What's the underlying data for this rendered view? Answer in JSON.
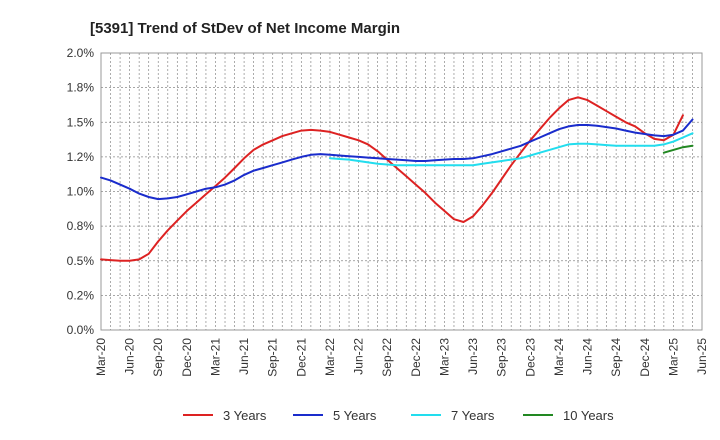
{
  "chart_data": {
    "type": "line",
    "title": "[5391]  Trend of StDev of Net Income Margin",
    "xlabel": "",
    "ylabel": "",
    "x_ticks": [
      "Mar-20",
      "Jun-20",
      "Sep-20",
      "Dec-20",
      "Mar-21",
      "Jun-21",
      "Sep-21",
      "Dec-21",
      "Mar-22",
      "Jun-22",
      "Sep-22",
      "Dec-22",
      "Mar-23",
      "Jun-23",
      "Sep-23",
      "Dec-23",
      "Mar-24",
      "Jun-24",
      "Sep-24",
      "Dec-24",
      "Mar-25",
      "Jun-25"
    ],
    "y_ticks": [
      "0.0%",
      "0.2%",
      "0.5%",
      "0.8%",
      "1.0%",
      "1.2%",
      "1.5%",
      "1.8%",
      "2.0%"
    ],
    "ylim": [
      0,
      2.0
    ],
    "grid": true,
    "legend_position": "bottom",
    "series": [
      {
        "name": "3 Years",
        "color": "#dd2222",
        "points": [
          [
            "Mar-20",
            0.51
          ],
          [
            "Apr-20",
            0.505
          ],
          [
            "May-20",
            0.5
          ],
          [
            "Jun-20",
            0.5
          ],
          [
            "Jul-20",
            0.51
          ],
          [
            "Aug-20",
            0.55
          ],
          [
            "Sep-20",
            0.64
          ],
          [
            "Oct-20",
            0.72
          ],
          [
            "Nov-20",
            0.79
          ],
          [
            "Dec-20",
            0.86
          ],
          [
            "Jan-21",
            0.92
          ],
          [
            "Feb-21",
            0.98
          ],
          [
            "Mar-21",
            1.04
          ],
          [
            "Apr-21",
            1.1
          ],
          [
            "May-21",
            1.17
          ],
          [
            "Jun-21",
            1.24
          ],
          [
            "Jul-21",
            1.3
          ],
          [
            "Aug-21",
            1.34
          ],
          [
            "Sep-21",
            1.37
          ],
          [
            "Oct-21",
            1.4
          ],
          [
            "Nov-21",
            1.42
          ],
          [
            "Dec-21",
            1.44
          ],
          [
            "Jan-22",
            1.445
          ],
          [
            "Feb-22",
            1.44
          ],
          [
            "Mar-22",
            1.43
          ],
          [
            "Apr-22",
            1.41
          ],
          [
            "May-22",
            1.39
          ],
          [
            "Jun-22",
            1.37
          ],
          [
            "Jul-22",
            1.34
          ],
          [
            "Aug-22",
            1.29
          ],
          [
            "Sep-22",
            1.23
          ],
          [
            "Oct-22",
            1.17
          ],
          [
            "Nov-22",
            1.11
          ],
          [
            "Dec-22",
            1.05
          ],
          [
            "Jan-23",
            0.99
          ],
          [
            "Feb-23",
            0.92
          ],
          [
            "Mar-23",
            0.86
          ],
          [
            "Apr-23",
            0.8
          ],
          [
            "May-23",
            0.78
          ],
          [
            "Jun-23",
            0.82
          ],
          [
            "Jul-23",
            0.9
          ],
          [
            "Aug-23",
            0.99
          ],
          [
            "Sep-23",
            1.09
          ],
          [
            "Oct-23",
            1.19
          ],
          [
            "Nov-23",
            1.28
          ],
          [
            "Dec-23",
            1.37
          ],
          [
            "Jan-24",
            1.45
          ],
          [
            "Feb-24",
            1.53
          ],
          [
            "Mar-24",
            1.6
          ],
          [
            "Apr-24",
            1.66
          ],
          [
            "May-24",
            1.68
          ],
          [
            "Jun-24",
            1.66
          ],
          [
            "Jul-24",
            1.62
          ],
          [
            "Aug-24",
            1.58
          ],
          [
            "Sep-24",
            1.54
          ],
          [
            "Oct-24",
            1.5
          ],
          [
            "Nov-24",
            1.47
          ],
          [
            "Dec-24",
            1.42
          ],
          [
            "Jan-25",
            1.38
          ],
          [
            "Feb-25",
            1.37
          ],
          [
            "Mar-25",
            1.41
          ],
          [
            "Apr-25",
            1.55
          ]
        ]
      },
      {
        "name": "5 Years",
        "color": "#1a2ccc",
        "points": [
          [
            "Mar-20",
            1.1
          ],
          [
            "Apr-20",
            1.08
          ],
          [
            "May-20",
            1.05
          ],
          [
            "Jun-20",
            1.02
          ],
          [
            "Jul-20",
            0.985
          ],
          [
            "Aug-20",
            0.96
          ],
          [
            "Sep-20",
            0.945
          ],
          [
            "Oct-20",
            0.95
          ],
          [
            "Nov-20",
            0.96
          ],
          [
            "Dec-20",
            0.98
          ],
          [
            "Jan-21",
            1.0
          ],
          [
            "Feb-21",
            1.02
          ],
          [
            "Mar-21",
            1.03
          ],
          [
            "Apr-21",
            1.05
          ],
          [
            "May-21",
            1.08
          ],
          [
            "Jun-21",
            1.12
          ],
          [
            "Jul-21",
            1.15
          ],
          [
            "Aug-21",
            1.17
          ],
          [
            "Sep-21",
            1.19
          ],
          [
            "Oct-21",
            1.21
          ],
          [
            "Nov-21",
            1.23
          ],
          [
            "Dec-21",
            1.25
          ],
          [
            "Jan-22",
            1.265
          ],
          [
            "Feb-22",
            1.27
          ],
          [
            "Mar-22",
            1.265
          ],
          [
            "Apr-22",
            1.26
          ],
          [
            "May-22",
            1.255
          ],
          [
            "Jun-22",
            1.25
          ],
          [
            "Jul-22",
            1.245
          ],
          [
            "Aug-22",
            1.24
          ],
          [
            "Sep-22",
            1.235
          ],
          [
            "Oct-22",
            1.23
          ],
          [
            "Nov-22",
            1.225
          ],
          [
            "Dec-22",
            1.22
          ],
          [
            "Jan-23",
            1.22
          ],
          [
            "Feb-23",
            1.225
          ],
          [
            "Mar-23",
            1.23
          ],
          [
            "Apr-23",
            1.235
          ],
          [
            "May-23",
            1.235
          ],
          [
            "Jun-23",
            1.24
          ],
          [
            "Jul-23",
            1.255
          ],
          [
            "Aug-23",
            1.27
          ],
          [
            "Sep-23",
            1.29
          ],
          [
            "Oct-23",
            1.31
          ],
          [
            "Nov-23",
            1.33
          ],
          [
            "Dec-23",
            1.36
          ],
          [
            "Jan-24",
            1.39
          ],
          [
            "Feb-24",
            1.42
          ],
          [
            "Mar-24",
            1.45
          ],
          [
            "Apr-24",
            1.47
          ],
          [
            "May-24",
            1.48
          ],
          [
            "Jun-24",
            1.48
          ],
          [
            "Jul-24",
            1.475
          ],
          [
            "Aug-24",
            1.465
          ],
          [
            "Sep-24",
            1.455
          ],
          [
            "Oct-24",
            1.44
          ],
          [
            "Nov-24",
            1.425
          ],
          [
            "Dec-24",
            1.415
          ],
          [
            "Jan-25",
            1.405
          ],
          [
            "Feb-25",
            1.4
          ],
          [
            "Mar-25",
            1.41
          ],
          [
            "Apr-25",
            1.44
          ],
          [
            "May-25",
            1.52
          ]
        ]
      },
      {
        "name": "7 Years",
        "color": "#22ddee",
        "points": [
          [
            "Mar-22",
            1.24
          ],
          [
            "Apr-22",
            1.235
          ],
          [
            "May-22",
            1.23
          ],
          [
            "Jun-22",
            1.22
          ],
          [
            "Jul-22",
            1.21
          ],
          [
            "Aug-22",
            1.2
          ],
          [
            "Sep-22",
            1.195
          ],
          [
            "Oct-22",
            1.19
          ],
          [
            "Nov-22",
            1.19
          ],
          [
            "Dec-22",
            1.19
          ],
          [
            "Jan-23",
            1.19
          ],
          [
            "Feb-23",
            1.19
          ],
          [
            "Mar-23",
            1.19
          ],
          [
            "Apr-23",
            1.19
          ],
          [
            "May-23",
            1.19
          ],
          [
            "Jun-23",
            1.19
          ],
          [
            "Jul-23",
            1.2
          ],
          [
            "Aug-23",
            1.21
          ],
          [
            "Sep-23",
            1.22
          ],
          [
            "Oct-23",
            1.23
          ],
          [
            "Nov-23",
            1.24
          ],
          [
            "Dec-23",
            1.26
          ],
          [
            "Jan-24",
            1.28
          ],
          [
            "Feb-24",
            1.3
          ],
          [
            "Mar-24",
            1.32
          ],
          [
            "Apr-24",
            1.34
          ],
          [
            "May-24",
            1.345
          ],
          [
            "Jun-24",
            1.345
          ],
          [
            "Jul-24",
            1.34
          ],
          [
            "Aug-24",
            1.335
          ],
          [
            "Sep-24",
            1.33
          ],
          [
            "Oct-24",
            1.33
          ],
          [
            "Nov-24",
            1.33
          ],
          [
            "Dec-24",
            1.33
          ],
          [
            "Jan-25",
            1.33
          ],
          [
            "Feb-25",
            1.34
          ],
          [
            "Mar-25",
            1.36
          ],
          [
            "Apr-25",
            1.39
          ],
          [
            "May-25",
            1.42
          ]
        ]
      },
      {
        "name": "10 Years",
        "color": "#228822",
        "points": [
          [
            "Feb-25",
            1.28
          ],
          [
            "Mar-25",
            1.3
          ],
          [
            "Apr-25",
            1.32
          ],
          [
            "May-25",
            1.33
          ]
        ]
      }
    ]
  }
}
